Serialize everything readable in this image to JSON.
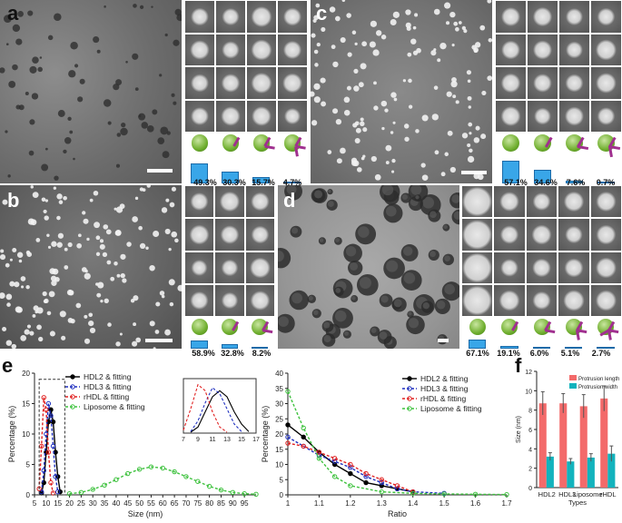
{
  "panels": {
    "a": {
      "label": "a",
      "percents": [
        "49.3%",
        "30.3%",
        "15.7%",
        "4.7%"
      ],
      "bars": [
        0.493,
        0.303,
        0.157,
        0.047
      ]
    },
    "b": {
      "label": "b",
      "percents": [
        "58.9%",
        "32.8%",
        "8.2%"
      ],
      "bars": [
        0.589,
        0.328,
        0.082
      ]
    },
    "c": {
      "label": "c",
      "percents": [
        "57.1%",
        "34.6%",
        "7.6%",
        "0.7%"
      ],
      "bars": [
        0.571,
        0.346,
        0.076,
        0.007
      ]
    },
    "d": {
      "label": "d",
      "percents": [
        "67.1%",
        "19.1%",
        "6.0%",
        "5.1%",
        "2.7%"
      ],
      "bars": [
        0.671,
        0.191,
        0.06,
        0.051,
        0.027
      ]
    }
  },
  "chart_data": [
    {
      "type": "line",
      "panel": "e",
      "xlabel": "Size (nm)",
      "ylabel": "Percentage (%)",
      "xlim": [
        5,
        100
      ],
      "ylim": [
        0,
        20
      ],
      "xticks": [
        5,
        10,
        15,
        20,
        25,
        30,
        35,
        40,
        45,
        50,
        55,
        60,
        65,
        70,
        75,
        80,
        85,
        90,
        95
      ],
      "yticks": [
        0,
        5,
        10,
        15,
        20
      ],
      "legend": [
        "HDL2 & fitting",
        "HDL3 & fitting",
        "rHDL & fitting",
        "Liposome & fitting"
      ],
      "series": [
        {
          "name": "HDL2 & fitting",
          "color": "#000000",
          "x": [
            8,
            9,
            10,
            11,
            12,
            13,
            14,
            15,
            16
          ],
          "y": [
            0.3,
            2,
            7,
            12,
            14,
            12,
            7,
            3,
            0.5
          ]
        },
        {
          "name": "HDL3 & fitting",
          "color": "#1f2fbf",
          "x": [
            8,
            9,
            10,
            11,
            12,
            13,
            14,
            15
          ],
          "y": [
            0.5,
            4,
            10,
            15,
            13,
            8,
            3,
            0.5
          ]
        },
        {
          "name": "rHDL & fitting",
          "color": "#e02020",
          "x": [
            7,
            8,
            9,
            10,
            11,
            12,
            13
          ],
          "y": [
            1,
            8,
            16,
            14,
            7,
            2,
            0.3
          ]
        },
        {
          "name": "Liposome & fitting",
          "color": "#3fc23f",
          "x": [
            20,
            25,
            30,
            35,
            40,
            45,
            50,
            55,
            60,
            65,
            70,
            75,
            80,
            85,
            90,
            95,
            100
          ],
          "y": [
            0.2,
            0.4,
            0.9,
            1.6,
            2.5,
            3.5,
            4.2,
            4.6,
            4.4,
            3.8,
            3,
            2.2,
            1.4,
            0.8,
            0.4,
            0.2,
            0.1
          ]
        }
      ],
      "inset": {
        "xticks": [
          7,
          9,
          11,
          13,
          15,
          17
        ],
        "xlim": [
          7,
          17
        ]
      }
    },
    {
      "type": "line",
      "panel": "e-right",
      "xlabel": "Ratio",
      "ylabel": "Percentage (%)",
      "xlim": [
        1.0,
        1.7
      ],
      "ylim": [
        0,
        40
      ],
      "xticks": [
        1.0,
        1.1,
        1.2,
        1.3,
        1.4,
        1.5,
        1.6,
        1.7
      ],
      "yticks": [
        0,
        5,
        10,
        15,
        20,
        25,
        30,
        35,
        40
      ],
      "legend": [
        "HDL2 & fitting",
        "HDL3 & fitting",
        "rHDL & fitting",
        "Liposome & fitting"
      ],
      "series": [
        {
          "name": "HDL2 & fitting",
          "color": "#000000",
          "x": [
            1.0,
            1.05,
            1.1,
            1.15,
            1.2,
            1.25,
            1.3,
            1.35,
            1.4
          ],
          "y": [
            23,
            19,
            14,
            10,
            7,
            4,
            3,
            2,
            1
          ]
        },
        {
          "name": "HDL3 & fitting",
          "color": "#1f2fbf",
          "x": [
            1.0,
            1.05,
            1.1,
            1.15,
            1.2,
            1.25,
            1.3,
            1.35,
            1.4,
            1.5
          ],
          "y": [
            19,
            16,
            13,
            11,
            9,
            6,
            4,
            2,
            1,
            0.5
          ]
        },
        {
          "name": "rHDL & fitting",
          "color": "#e02020",
          "x": [
            1.0,
            1.05,
            1.1,
            1.15,
            1.2,
            1.25,
            1.3,
            1.35,
            1.4
          ],
          "y": [
            17,
            16,
            14,
            12,
            10,
            7,
            5,
            3,
            1
          ]
        },
        {
          "name": "Liposome & fitting",
          "color": "#3fc23f",
          "x": [
            1.0,
            1.05,
            1.1,
            1.15,
            1.2,
            1.3,
            1.4,
            1.5,
            1.6,
            1.7
          ],
          "y": [
            34,
            22,
            12,
            6,
            3,
            1,
            0.5,
            0.3,
            0.2,
            0.1
          ]
        }
      ]
    },
    {
      "type": "bar",
      "panel": "f",
      "xlabel": "Types",
      "ylabel": "Size (nm)",
      "ylim": [
        0,
        12
      ],
      "yticks": [
        0,
        2,
        4,
        6,
        8,
        10,
        12
      ],
      "categories": [
        "HDL2",
        "HDL3",
        "Liposome",
        "rHDL"
      ],
      "series": [
        {
          "name": "Protrusion length",
          "color": "#f36a6a",
          "values": [
            8.7,
            8.7,
            8.4,
            9.2
          ],
          "errors": [
            1.2,
            1.0,
            1.2,
            1.3
          ]
        },
        {
          "name": "Protrusion width",
          "color": "#13b3bd",
          "values": [
            3.2,
            2.7,
            3.1,
            3.5
          ],
          "errors": [
            0.4,
            0.3,
            0.4,
            0.8
          ]
        }
      ]
    }
  ],
  "labels": {
    "e": "e",
    "f": "f"
  }
}
